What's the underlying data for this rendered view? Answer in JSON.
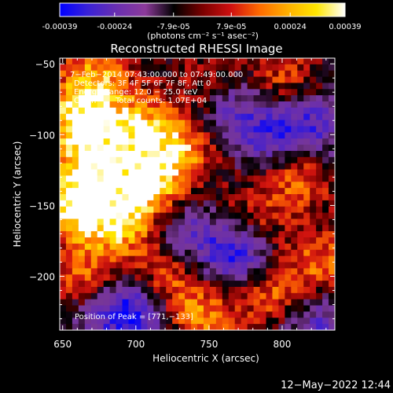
{
  "colorbar": {
    "tick_labels": [
      "-0.00039",
      "-0.00024",
      "-7.9e-05",
      "7.9e-05",
      "0.00024",
      "0.00039"
    ],
    "tick_values": [
      -0.00039,
      -0.00024,
      -7.9e-05,
      7.9e-05,
      0.00024,
      0.00039
    ],
    "range": [
      -0.00039,
      0.00039
    ],
    "units": "(photons cm⁻² s⁻¹ asec⁻²)",
    "gradient_colors": [
      "#0000ff",
      "#3a22d6",
      "#6a2fb0",
      "#8c3a9a",
      "#000000",
      "#7a0000",
      "#d01010",
      "#ff6a00",
      "#ffb000",
      "#ffe600",
      "#ffffff"
    ]
  },
  "chart_data": {
    "type": "heatmap",
    "title": "Reconstructed RHESSI Image",
    "xlabel": "Heliocentric X (arcsec)",
    "ylabel": "Heliocentric Y (arcsec)",
    "xlim": [
      648,
      836
    ],
    "ylim": [
      -238,
      -46
    ],
    "x_ticks": [
      650,
      700,
      750,
      800
    ],
    "y_ticks": [
      -50,
      -100,
      -150,
      -200
    ],
    "x_tick_labels": [
      "650",
      "700",
      "750",
      "800"
    ],
    "y_tick_labels": [
      "−50",
      "−100",
      "−150",
      "−200"
    ],
    "annotations": [
      "7−Feb−2014 07:43:00.000 to 07:49:00.000",
      "Detectors: 3F 4F 5F 6F 7F 8F, Att 0",
      "Energy Range: 12.0 − 25.0 keV",
      "Clean",
      "Total counts: 1.07E+04"
    ],
    "peak_label": "Position of Peak = [771,−133]",
    "peak": [
      771,
      -133
    ],
    "bright_regions": [
      {
        "x": 660,
        "y": -150,
        "level": 1.0
      },
      {
        "x": 670,
        "y": -120,
        "level": 0.75
      },
      {
        "x": 660,
        "y": -90,
        "level": 0.85
      },
      {
        "x": 672,
        "y": -60,
        "level": 0.7
      },
      {
        "x": 700,
        "y": -95,
        "level": 0.75
      },
      {
        "x": 708,
        "y": -135,
        "level": 0.95
      },
      {
        "x": 732,
        "y": -110,
        "level": 0.7
      },
      {
        "x": 750,
        "y": -70,
        "level": 0.55
      },
      {
        "x": 690,
        "y": -165,
        "level": 0.7
      },
      {
        "x": 665,
        "y": -200,
        "level": 0.55
      },
      {
        "x": 720,
        "y": -200,
        "level": 0.6
      },
      {
        "x": 745,
        "y": -228,
        "level": 0.65
      },
      {
        "x": 790,
        "y": -210,
        "level": 0.6
      },
      {
        "x": 812,
        "y": -130,
        "level": 0.6
      },
      {
        "x": 828,
        "y": -190,
        "level": 0.55
      },
      {
        "x": 800,
        "y": -60,
        "level": 0.45
      },
      {
        "x": 780,
        "y": -160,
        "level": 0.45
      }
    ],
    "dark_regions": [
      {
        "x": 770,
        "y": -185,
        "level": -1.0
      },
      {
        "x": 760,
        "y": -80,
        "level": -0.75
      },
      {
        "x": 700,
        "y": -225,
        "level": -0.8
      },
      {
        "x": 820,
        "y": -95,
        "level": -0.7
      },
      {
        "x": 790,
        "y": -100,
        "level": -0.6
      },
      {
        "x": 735,
        "y": -170,
        "level": -0.55
      },
      {
        "x": 825,
        "y": -235,
        "level": -0.6
      },
      {
        "x": 680,
        "y": -225,
        "level": -0.45
      }
    ]
  },
  "footer": {
    "timestamp": "12−May−2022 12:44"
  }
}
